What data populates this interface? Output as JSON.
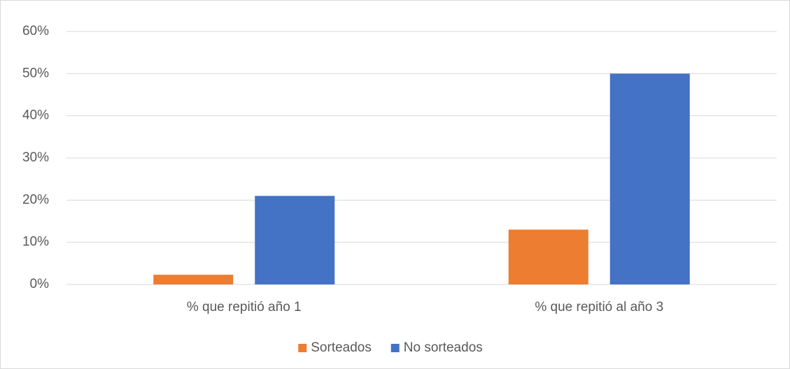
{
  "chart_data": {
    "type": "bar",
    "categories": [
      "% que repitió año 1",
      "% que repitió al año 3"
    ],
    "series": [
      {
        "name": "Sorteados",
        "color": "#ed7d31",
        "values": [
          2.3,
          13
        ]
      },
      {
        "name": "No sorteados",
        "color": "#4472c4",
        "values": [
          21,
          50
        ]
      }
    ],
    "ylim": [
      0,
      60
    ],
    "yticks": [
      {
        "value": 0,
        "label": "0%"
      },
      {
        "value": 10,
        "label": "10%"
      },
      {
        "value": 20,
        "label": "20%"
      },
      {
        "value": 30,
        "label": "30%"
      },
      {
        "value": 40,
        "label": "40%"
      },
      {
        "value": 50,
        "label": "50%"
      },
      {
        "value": 60,
        "label": "60%"
      }
    ],
    "grid": true,
    "legend": "bottom"
  }
}
